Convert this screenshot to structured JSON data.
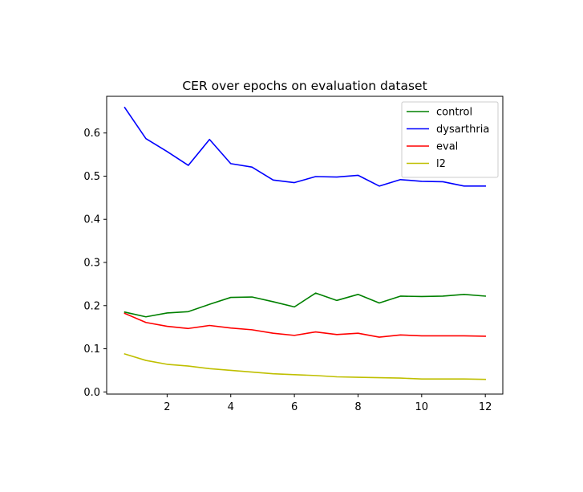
{
  "chart_data": {
    "type": "line",
    "title": "CER over epochs on evaluation dataset",
    "xlabel": "",
    "ylabel": "",
    "xlim": [
      0.1,
      12.55
    ],
    "ylim": [
      -0.005,
      0.685
    ],
    "xticks": [
      2,
      4,
      6,
      8,
      10,
      12
    ],
    "xtick_labels": [
      "2",
      "4",
      "6",
      "8",
      "10",
      "12"
    ],
    "yticks": [
      0.0,
      0.1,
      0.2,
      0.3,
      0.4,
      0.5,
      0.6
    ],
    "ytick_labels": [
      "0.0",
      "0.1",
      "0.2",
      "0.3",
      "0.4",
      "0.5",
      "0.6"
    ],
    "grid": false,
    "legend_position": "top-right",
    "x": [
      0.667,
      1.333,
      2.0,
      2.667,
      3.333,
      4.0,
      4.667,
      5.333,
      6.0,
      6.667,
      7.333,
      8.0,
      8.667,
      9.333,
      10.0,
      10.667,
      11.333,
      12.0
    ],
    "series": [
      {
        "name": "control",
        "color": "#008000",
        "values": [
          0.185,
          0.174,
          0.183,
          0.186,
          0.203,
          0.219,
          0.22,
          0.209,
          0.197,
          0.229,
          0.212,
          0.226,
          0.206,
          0.222,
          0.221,
          0.222,
          0.226,
          0.222
        ]
      },
      {
        "name": "dysarthria",
        "color": "#0000ff",
        "values": [
          0.659,
          0.587,
          0.557,
          0.525,
          0.585,
          0.529,
          0.521,
          0.491,
          0.485,
          0.499,
          0.498,
          0.502,
          0.477,
          0.492,
          0.488,
          0.487,
          0.477,
          0.477
        ]
      },
      {
        "name": "eval",
        "color": "#ff0000",
        "values": [
          0.182,
          0.161,
          0.152,
          0.147,
          0.154,
          0.148,
          0.144,
          0.136,
          0.131,
          0.139,
          0.133,
          0.136,
          0.127,
          0.132,
          0.13,
          0.13,
          0.13,
          0.129
        ]
      },
      {
        "name": "l2",
        "color": "#bfbf00",
        "values": [
          0.088,
          0.073,
          0.064,
          0.06,
          0.054,
          0.05,
          0.046,
          0.042,
          0.04,
          0.038,
          0.035,
          0.034,
          0.033,
          0.032,
          0.03,
          0.03,
          0.03,
          0.029
        ]
      }
    ]
  }
}
